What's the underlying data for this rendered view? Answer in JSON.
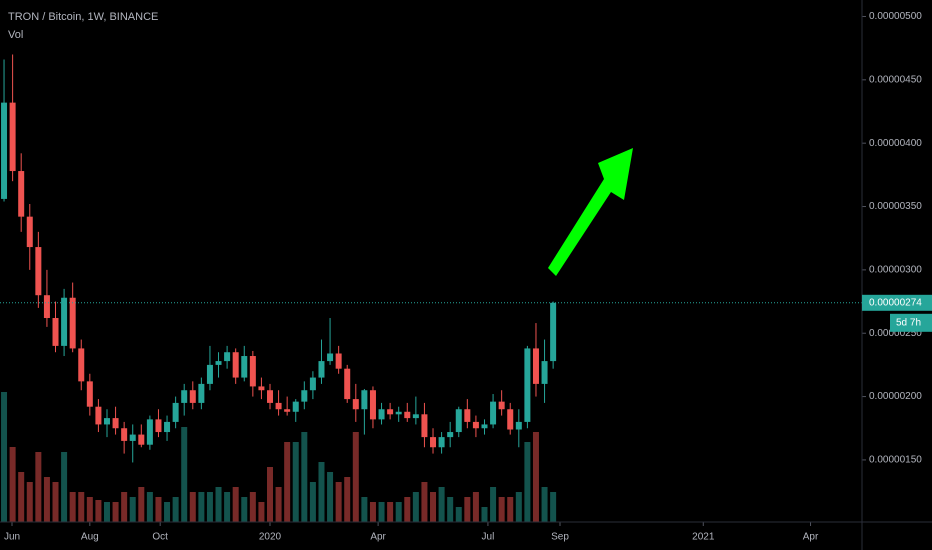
{
  "chart_data": {
    "type": "candlestick",
    "title": "TRON / Bitcoin, 1W, BINANCE",
    "up_color": "#26a69a",
    "down_color": "#ef5350",
    "volume_opacity": 0.5,
    "open": [
      3.56e-06,
      4.32e-06,
      3.78e-06,
      3.42e-06,
      3.18e-06,
      2.8e-06,
      2.62e-06,
      2.4e-06,
      2.78e-06,
      2.38e-06,
      2.12e-06,
      1.92e-06,
      1.78e-06,
      1.83e-06,
      1.75e-06,
      1.65e-06,
      1.7e-06,
      1.62e-06,
      1.82e-06,
      1.72e-06,
      1.8e-06,
      1.95e-06,
      2.05e-06,
      1.95e-06,
      2.1e-06,
      2.25e-06,
      2.28e-06,
      2.35e-06,
      2.15e-06,
      2.32e-06,
      2.08e-06,
      2.05e-06,
      1.95e-06,
      1.9e-06,
      1.88e-06,
      1.96e-06,
      2.05e-06,
      2.15e-06,
      2.28e-06,
      2.34e-06,
      2.22e-06,
      1.98e-06,
      1.9e-06,
      2.05e-06,
      1.82e-06,
      1.9e-06,
      1.86e-06,
      1.88e-06,
      1.83e-06,
      1.86e-06,
      1.68e-06,
      1.6e-06,
      1.68e-06,
      1.72e-06,
      1.9e-06,
      1.8e-06,
      1.75e-06,
      1.78e-06,
      1.96e-06,
      1.9e-06,
      1.74e-06,
      1.8e-06,
      2.38e-06,
      2.1e-06,
      2.28e-06
    ],
    "high": [
      4.66e-06,
      4.7e-06,
      3.92e-06,
      3.52e-06,
      3.3e-06,
      3e-06,
      2.75e-06,
      2.85e-06,
      2.9e-06,
      2.45e-06,
      2.18e-06,
      1.98e-06,
      1.9e-06,
      1.92e-06,
      1.8e-06,
      1.78e-06,
      1.78e-06,
      1.85e-06,
      1.9e-06,
      1.85e-06,
      2e-06,
      2.1e-06,
      2.12e-06,
      2.15e-06,
      2.4e-06,
      2.35e-06,
      2.4e-06,
      2.38e-06,
      2.4e-06,
      2.36e-06,
      2.15e-06,
      2.1e-06,
      2.05e-06,
      2e-06,
      1.98e-06,
      2.12e-06,
      2.2e-06,
      2.45e-06,
      2.62e-06,
      2.4e-06,
      2.25e-06,
      2.1e-06,
      2.06e-06,
      2.08e-06,
      1.95e-06,
      1.95e-06,
      1.92e-06,
      1.95e-06,
      2e-06,
      1.95e-06,
      1.75e-06,
      1.72e-06,
      1.8e-06,
      1.92e-06,
      1.98e-06,
      1.85e-06,
      1.82e-06,
      2.02e-06,
      2.05e-06,
      1.95e-06,
      1.9e-06,
      2.4e-06,
      2.58e-06,
      2.45e-06,
      2.75e-06
    ],
    "low": [
      3.54e-06,
      3.7e-06,
      3.3e-06,
      3e-06,
      2.7e-06,
      2.55e-06,
      2.35e-06,
      2.32e-06,
      2.35e-06,
      2.05e-06,
      1.85e-06,
      1.72e-06,
      1.68e-06,
      1.7e-06,
      1.55e-06,
      1.48e-06,
      1.6e-06,
      1.58e-06,
      1.68e-06,
      1.65e-06,
      1.75e-06,
      1.85e-06,
      1.9e-06,
      1.9e-06,
      2.05e-06,
      2.15e-06,
      2.22e-06,
      2.1e-06,
      2.12e-06,
      2e-06,
      1.98e-06,
      1.9e-06,
      1.85e-06,
      1.85e-06,
      1.8e-06,
      1.9e-06,
      1.98e-06,
      2.1e-06,
      2.25e-06,
      2.18e-06,
      1.95e-06,
      1.8e-06,
      1.7e-06,
      1.75e-06,
      1.78e-06,
      1.82e-06,
      1.8e-06,
      1.8e-06,
      1.78e-06,
      1.6e-06,
      1.55e-06,
      1.55e-06,
      1.6e-06,
      1.68e-06,
      1.75e-06,
      1.68e-06,
      1.7e-06,
      1.75e-06,
      1.85e-06,
      1.7e-06,
      1.6e-06,
      1.75e-06,
      2e-06,
      1.95e-06,
      2.22e-06
    ],
    "close": [
      4.32e-06,
      3.78e-06,
      3.42e-06,
      3.18e-06,
      2.8e-06,
      2.62e-06,
      2.4e-06,
      2.78e-06,
      2.38e-06,
      2.12e-06,
      1.92e-06,
      1.78e-06,
      1.83e-06,
      1.75e-06,
      1.65e-06,
      1.7e-06,
      1.62e-06,
      1.82e-06,
      1.72e-06,
      1.8e-06,
      1.95e-06,
      2.05e-06,
      1.95e-06,
      2.1e-06,
      2.25e-06,
      2.28e-06,
      2.35e-06,
      2.15e-06,
      2.32e-06,
      2.08e-06,
      2.05e-06,
      1.95e-06,
      1.9e-06,
      1.88e-06,
      1.96e-06,
      2.05e-06,
      2.15e-06,
      2.28e-06,
      2.34e-06,
      2.22e-06,
      1.98e-06,
      1.9e-06,
      2.05e-06,
      1.82e-06,
      1.9e-06,
      1.86e-06,
      1.88e-06,
      1.83e-06,
      1.86e-06,
      1.68e-06,
      1.6e-06,
      1.68e-06,
      1.72e-06,
      1.9e-06,
      1.8e-06,
      1.75e-06,
      1.78e-06,
      1.96e-06,
      1.9e-06,
      1.74e-06,
      1.8e-06,
      2.38e-06,
      2.1e-06,
      2.28e-06,
      2.74e-06
    ],
    "volume": {
      "name": "Vol",
      "values": [
        130,
        75,
        50,
        40,
        70,
        45,
        40,
        70,
        30,
        30,
        25,
        22,
        20,
        20,
        30,
        25,
        35,
        30,
        25,
        20,
        25,
        95,
        30,
        30,
        30,
        35,
        30,
        35,
        25,
        30,
        20,
        55,
        35,
        80,
        80,
        90,
        40,
        60,
        50,
        40,
        45,
        90,
        25,
        20,
        20,
        20,
        20,
        25,
        30,
        40,
        30,
        35,
        25,
        15,
        25,
        30,
        15,
        35,
        25,
        25,
        30,
        80,
        90,
        35,
        30
      ]
    },
    "countdown": "5d 7h",
    "xlim": [
      -0.47,
      100
    ],
    "xticks": [
      {
        "value": 0.93,
        "label": "Jun"
      },
      {
        "value": 10,
        "label": "Aug"
      },
      {
        "value": 18.2,
        "label": "Oct"
      },
      {
        "value": 31,
        "label": "2020"
      },
      {
        "value": 43.6,
        "label": "Apr"
      },
      {
        "value": 56.4,
        "label": "Jul"
      },
      {
        "value": 64.8,
        "label": "Sep"
      },
      {
        "value": 81.5,
        "label": "2021"
      },
      {
        "value": 94,
        "label": "Apr"
      }
    ],
    "ylim": [
      1.01e-06,
      5.13e-06
    ],
    "yticks": [
      {
        "value": 5e-06,
        "label": "0.00000500"
      },
      {
        "value": 4.5e-06,
        "label": "0.00000450"
      },
      {
        "value": 4e-06,
        "label": "0.00000400"
      },
      {
        "value": 3.5e-06,
        "label": "0.00000350"
      },
      {
        "value": 3e-06,
        "label": "0.00000300"
      },
      {
        "value": 2.5e-06,
        "label": "0.00000250"
      },
      {
        "value": 2e-06,
        "label": "0.00000200"
      },
      {
        "value": 1.5e-06,
        "label": "0.00000150"
      }
    ]
  }
}
